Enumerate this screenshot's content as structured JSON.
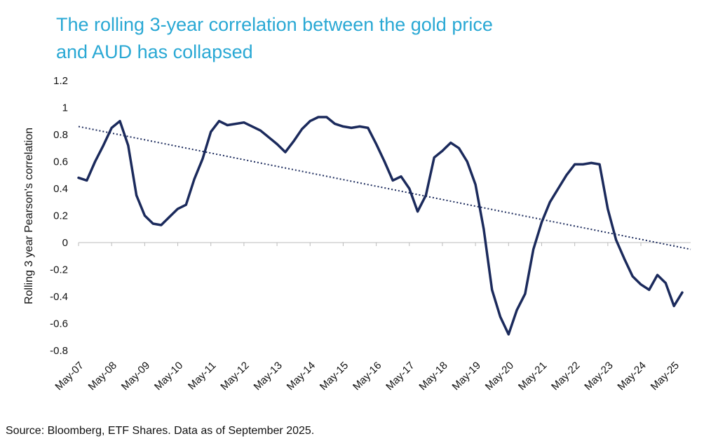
{
  "chart_data": {
    "type": "line",
    "title": "The rolling 3-year correlation between the gold price and AUD has collapsed",
    "title_lines": [
      "The rolling 3-year correlation between the gold price",
      "and AUD has collapsed"
    ],
    "y_label": "Rolling 3 year Pearson's correlation",
    "source": "Source: Bloomberg, ETF Shares. Data as of September 2025.",
    "categories": [
      "May-07",
      null,
      null,
      null,
      "May-08",
      null,
      null,
      null,
      "May-09",
      null,
      null,
      null,
      "May-10",
      null,
      null,
      null,
      "May-11",
      null,
      null,
      null,
      "May-12",
      null,
      null,
      null,
      "May-13",
      null,
      null,
      null,
      "May-14",
      null,
      null,
      null,
      "May-15",
      null,
      null,
      null,
      "May-16",
      null,
      null,
      null,
      "May-17",
      null,
      null,
      null,
      "May-18",
      null,
      null,
      null,
      "May-19",
      null,
      null,
      null,
      "May-20",
      null,
      null,
      null,
      "May-21",
      null,
      null,
      null,
      "May-22",
      null,
      null,
      null,
      "May-23",
      null,
      null,
      null,
      "May-24",
      null,
      null,
      null,
      "May-25",
      null
    ],
    "series": [
      {
        "name": "Rolling 3 year correlation",
        "color": "#1b2a5c",
        "values": [
          0.48,
          0.46,
          0.6,
          0.72,
          0.85,
          0.9,
          0.72,
          0.35,
          0.2,
          0.14,
          0.13,
          0.19,
          0.25,
          0.28,
          0.47,
          0.62,
          0.82,
          0.9,
          0.87,
          0.88,
          0.89,
          0.86,
          0.83,
          0.78,
          0.73,
          0.67,
          0.75,
          0.84,
          0.9,
          0.93,
          0.93,
          0.88,
          0.86,
          0.85,
          0.86,
          0.85,
          0.73,
          0.6,
          0.46,
          0.49,
          0.4,
          0.23,
          0.35,
          0.63,
          0.68,
          0.74,
          0.7,
          0.6,
          0.43,
          0.1,
          -0.35,
          -0.55,
          -0.68,
          -0.5,
          -0.38,
          -0.05,
          0.15,
          0.3,
          0.4,
          0.5,
          0.58,
          0.58,
          0.59,
          0.58,
          0.25,
          0.02,
          -0.12,
          -0.25,
          -0.31,
          -0.35,
          -0.24,
          -0.3,
          -0.47,
          -0.37
        ]
      }
    ],
    "trend": [
      0.86,
      -0.05
    ],
    "trend_color": "#1b2a5c",
    "ylim": [
      -0.8,
      1.2
    ],
    "yticks": [
      1.2,
      1,
      0.8,
      0.6,
      0.4,
      0.2,
      0,
      -0.2,
      -0.4,
      -0.6,
      -0.8
    ],
    "grid": false
  }
}
